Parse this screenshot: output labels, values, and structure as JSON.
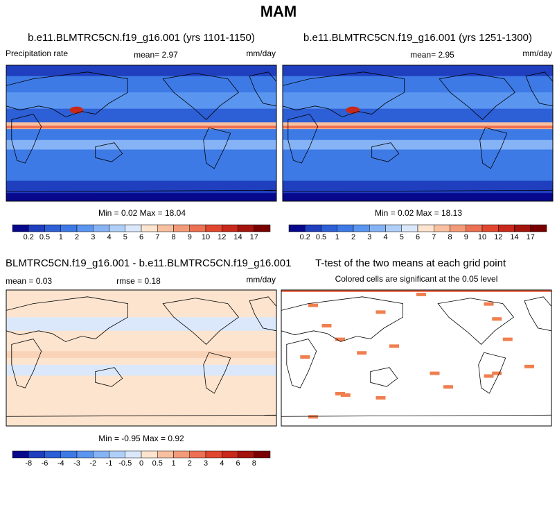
{
  "title": "MAM",
  "panels": [
    {
      "title": "b.e11.BLMTRC5CN.f19_g16.001 (yrs 1101-1150)",
      "left": "Precipitation rate",
      "center": "mean=   2.97",
      "right": "mm/day",
      "stats": "Min =   0.02 Max =  18.04",
      "colorbar": {
        "labels": [
          0.2,
          0.5,
          1,
          2,
          3,
          4,
          5,
          6,
          7,
          8,
          9,
          10,
          12,
          14,
          17
        ],
        "colors": [
          "#08088c",
          "#1f3fbf",
          "#2d5fd6",
          "#3d7ae6",
          "#5a95f0",
          "#86b3f5",
          "#b0cff8",
          "#dbe8fb",
          "#fde4cf",
          "#f8c0a0",
          "#f39b78",
          "#ec7052",
          "#e0472e",
          "#c8291a",
          "#a3140d",
          "#7a0000"
        ]
      }
    },
    {
      "title": "b.e11.BLMTRC5CN.f19_g16.001 (yrs 1251-1300)",
      "center": "mean=   2.95",
      "right": "mm/day",
      "stats": "Min =   0.02 Max =  18.13",
      "colorbar": {
        "labels": [
          0.2,
          0.5,
          1,
          2,
          3,
          4,
          5,
          6,
          7,
          8,
          9,
          10,
          12,
          14,
          17
        ],
        "colors": [
          "#08088c",
          "#1f3fbf",
          "#2d5fd6",
          "#3d7ae6",
          "#5a95f0",
          "#86b3f5",
          "#b0cff8",
          "#dbe8fb",
          "#fde4cf",
          "#f8c0a0",
          "#f39b78",
          "#ec7052",
          "#e0472e",
          "#c8291a",
          "#a3140d",
          "#7a0000"
        ]
      }
    },
    {
      "title": "BLMTRC5CN.f19_g16.001 - b.e11.BLMTRC5CN.f19_g16.001",
      "left": "mean =   0.03",
      "center": "rmse =   0.18",
      "right": "mm/day",
      "stats": "Min =  -0.95 Max =   0.92",
      "colorbar": {
        "labels": [
          -8,
          -6,
          -4,
          -3,
          -2,
          -1,
          -0.5,
          0,
          0.5,
          1,
          2,
          3,
          4,
          6,
          8
        ],
        "colors": [
          "#08088c",
          "#1f3fbf",
          "#2d5fd6",
          "#3d7ae6",
          "#5a95f0",
          "#86b3f5",
          "#b0cff8",
          "#dbe8fb",
          "#fde4cf",
          "#f8c0a0",
          "#f39b78",
          "#ec7052",
          "#e0472e",
          "#c8291a",
          "#a3140d",
          "#7a0000"
        ]
      }
    },
    {
      "title": "T-test of the two means at each grid point",
      "center": "Colored cells are significant at the 0.05 level"
    }
  ]
}
